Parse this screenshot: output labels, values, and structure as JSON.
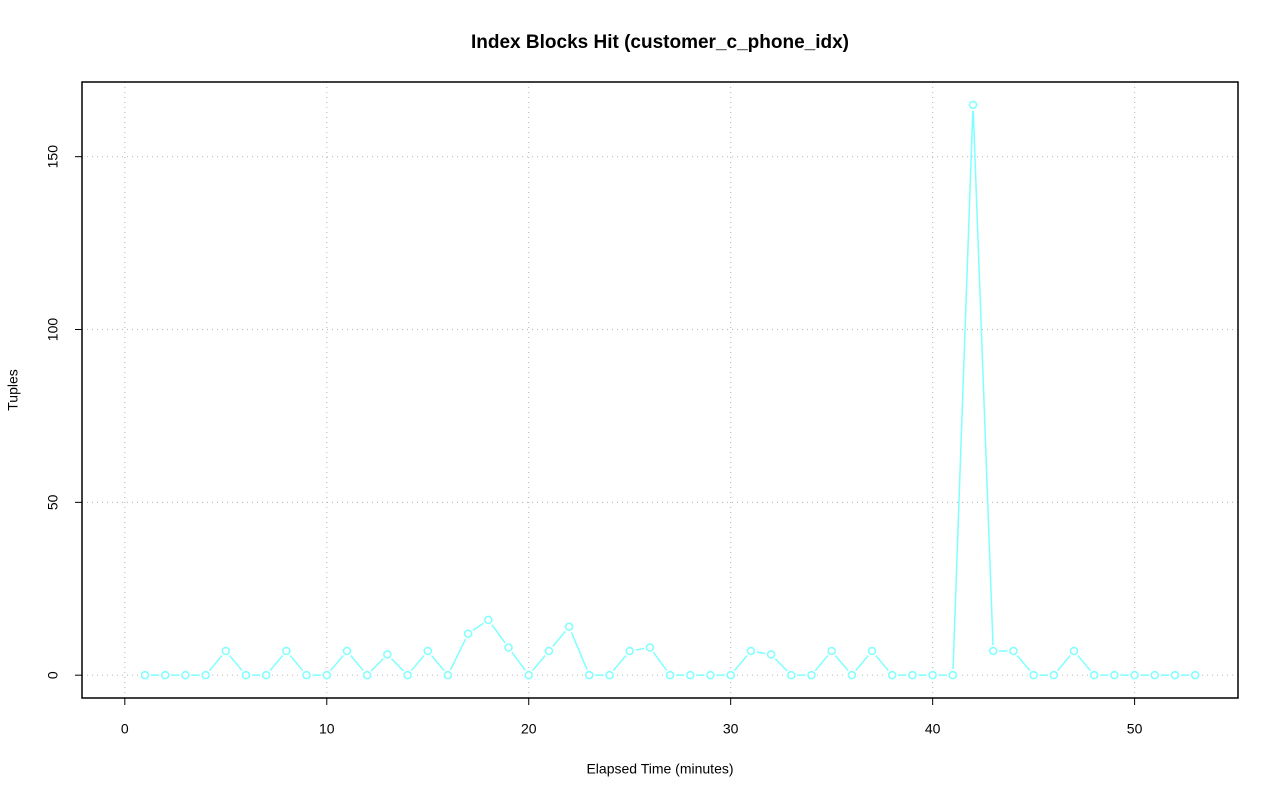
{
  "chart_data": {
    "type": "line",
    "title": "Index Blocks Hit (customer_c_phone_idx)",
    "x_label": "Elapsed Time (minutes)",
    "y_label": "Tuples",
    "x": [
      1,
      2,
      3,
      4,
      5,
      6,
      7,
      8,
      9,
      10,
      11,
      12,
      13,
      14,
      15,
      16,
      17,
      18,
      19,
      20,
      21,
      22,
      23,
      24,
      25,
      26,
      27,
      28,
      29,
      30,
      31,
      32,
      33,
      34,
      35,
      36,
      37,
      38,
      39,
      40,
      41,
      42,
      43,
      44,
      45,
      46,
      47,
      48,
      49,
      50,
      51,
      52,
      53
    ],
    "series": [
      {
        "name": "Tuples",
        "color": "#7fffff",
        "values": [
          0,
          0,
          0,
          0,
          7,
          0,
          0,
          7,
          0,
          0,
          7,
          0,
          6,
          0,
          7,
          0,
          12,
          16,
          8,
          0,
          7,
          14,
          0,
          0,
          7,
          8,
          0,
          0,
          0,
          0,
          7,
          6,
          0,
          0,
          7,
          0,
          7,
          0,
          0,
          0,
          0,
          165,
          7,
          7,
          0,
          0,
          7,
          0,
          0,
          0,
          0,
          0,
          0
        ]
      }
    ],
    "xlim": [
      -2.12,
      55.12
    ],
    "ylim": [
      -6.6,
      171.6
    ],
    "xticks": [
      0,
      10,
      20,
      30,
      40,
      50
    ],
    "yticks": [
      0,
      50,
      100,
      150
    ],
    "grid": true
  }
}
